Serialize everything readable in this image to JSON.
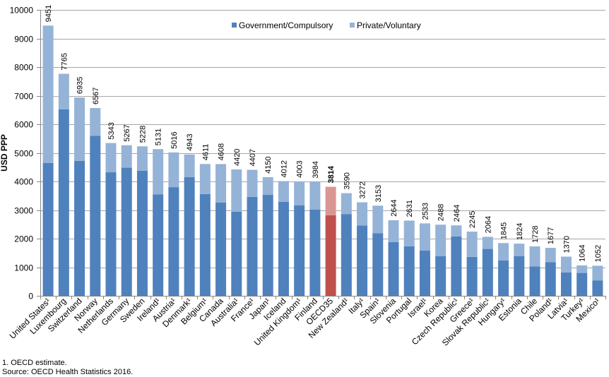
{
  "chart_data": {
    "type": "bar",
    "stacked": true,
    "ylabel": "USD PPP",
    "ylim": [
      0,
      10000
    ],
    "yticks": [
      0,
      1000,
      2000,
      3000,
      4000,
      5000,
      6000,
      7000,
      8000,
      9000,
      10000
    ],
    "grid": true,
    "legend_position": "top-center",
    "categories": [
      "United States¹",
      "Luxembourg",
      "Switzerland",
      "Norway",
      "Netherlands",
      "Germany",
      "Sweden",
      "Ireland¹",
      "Austria¹",
      "Denmark¹",
      "Belgium¹",
      "Canada",
      "Australia¹",
      "France¹",
      "Japan¹",
      "Iceland",
      "United Kingdom¹",
      "Finland",
      "OECD35",
      "New Zealand¹",
      "Italy¹",
      "Spain¹",
      "Slovenia",
      "Portugal",
      "Israel¹",
      "Korea",
      "Czech Republic¹",
      "Greece¹",
      "Slovak Republic¹",
      "Hungary¹",
      "Estonia",
      "Chile",
      "Poland¹",
      "Latvia¹",
      "Turkey¹",
      "Mexico¹"
    ],
    "series": [
      {
        "name": "Government/Compulsory",
        "color": "#4f81bd",
        "highlight_color": "#c0504d",
        "values": [
          4650,
          6520,
          4720,
          5600,
          4320,
          4480,
          4370,
          3550,
          3800,
          4150,
          3560,
          3260,
          2940,
          3460,
          3530,
          3290,
          3160,
          3020,
          2820,
          2860,
          2460,
          2190,
          1880,
          1730,
          1580,
          1390,
          2080,
          1360,
          1640,
          1240,
          1390,
          1030,
          1180,
          820,
          800,
          540
        ]
      },
      {
        "name": "Private/Voluntary",
        "color": "#95b3d7",
        "highlight_color": "#da9694",
        "values": [
          4801,
          1245,
          2215,
          967,
          1023,
          787,
          858,
          1581,
          1216,
          793,
          1051,
          1348,
          1480,
          947,
          620,
          722,
          843,
          964,
          994,
          730,
          812,
          963,
          764,
          901,
          953,
          1098,
          384,
          885,
          424,
          605,
          434,
          698,
          497,
          550,
          264,
          512
        ]
      }
    ],
    "totals": [
      "9451",
      "7765",
      "6935",
      "6567",
      "5343",
      "5267",
      "5228",
      "5131",
      "5016",
      "4943",
      "4611",
      "4608",
      "4420",
      "4407",
      "4150",
      "4012",
      "4003",
      "3984",
      "3814",
      "3590",
      "3272",
      "3153",
      "2644",
      "2631",
      "2533",
      "2488",
      "2464",
      "2245",
      "2064",
      "1845",
      "1824",
      "1728",
      "1677",
      "1370",
      "1064",
      "1052"
    ],
    "highlight_category": "OECD35",
    "notes": [
      "1. OECD estimate.",
      "Source: OECD Health Statistics 2016."
    ]
  }
}
